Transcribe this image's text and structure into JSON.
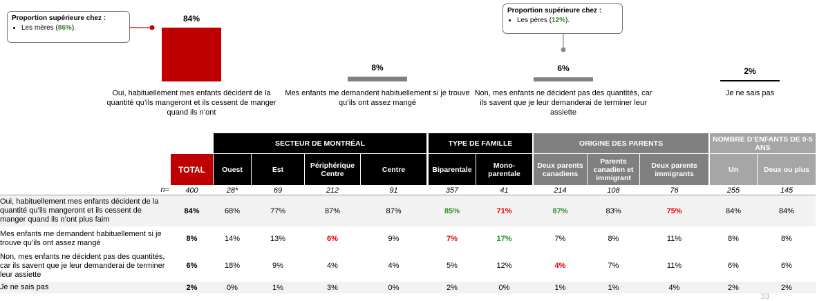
{
  "chart_data": {
    "type": "bar",
    "categories": [
      "Oui, habituellement mes enfants décident de la quantité qu’ils mangeront et ils cessent de manger quand ils n’ont",
      "Mes enfants me demandent habituellement si je trouve qu’ils ont assez mangé",
      "Non, mes enfants ne décident pas des quantités, car ils savent que je leur demanderai de terminer leur assiette",
      "Je ne sais pas"
    ],
    "values": [
      84,
      8,
      6,
      2
    ],
    "value_labels": [
      "84%",
      "8%",
      "6%",
      "2%"
    ],
    "colors": [
      "#c00000",
      "#808080",
      "#808080",
      "#000000"
    ]
  },
  "callouts": [
    {
      "heading": "Proportion supérieure chez :",
      "before": "Les mères (",
      "highlight": "86%",
      "after": ")."
    },
    {
      "heading": "Proportion supérieure chez :",
      "before": "Les pères (",
      "highlight": "12%",
      "after": ")."
    }
  ],
  "table": {
    "groups": [
      "SECTEUR DE MONTRÉAL",
      "TYPE DE FAMILLE",
      "ORIGINE DES PARENTS",
      "NOMBRE D’ENFANTS DE 0-5 ANS"
    ],
    "columns": [
      "TOTAL",
      "Ouest",
      "Est",
      "Périphérique Centre",
      "Centre",
      "Biparentale",
      "Mono-parentale",
      "Deux parents canadiens",
      "Parents canadien et immigrant",
      "Deux parents immigrants",
      "Un",
      "Deux ou plus"
    ],
    "n_label": "n=",
    "n": [
      "400",
      "28*",
      "69",
      "212",
      "91",
      "357",
      "41",
      "214",
      "108",
      "76",
      "255",
      "145"
    ],
    "rows": [
      {
        "label": "Oui, habituellement mes enfants décident de la quantité qu’ils mangeront et ils cessent de manger quand ils n’ont plus faim",
        "cells": [
          "84%",
          "68%",
          "77%",
          "87%",
          "87%",
          "85%",
          "71%",
          "87%",
          "83%",
          "75%",
          "84%",
          "84%"
        ],
        "colors": [
          "#000000",
          "#000000",
          "#000000",
          "#000000",
          "#000000",
          "#2e8b2e",
          "#e60000",
          "#2e8b2e",
          "#000000",
          "#e60000",
          "#000000",
          "#000000"
        ]
      },
      {
        "label": "Mes enfants me demandent habituellement si je trouve qu’ils ont assez mangé",
        "cells": [
          "8%",
          "14%",
          "13%",
          "6%",
          "9%",
          "7%",
          "17%",
          "7%",
          "8%",
          "11%",
          "8%",
          "8%"
        ],
        "colors": [
          "#000000",
          "#000000",
          "#000000",
          "#e60000",
          "#000000",
          "#e60000",
          "#2e8b2e",
          "#000000",
          "#000000",
          "#000000",
          "#000000",
          "#000000"
        ]
      },
      {
        "label": "Non, mes enfants ne décident pas des quantités, car ils savent que je leur demanderai de terminer leur assiette",
        "cells": [
          "6%",
          "18%",
          "9%",
          "4%",
          "4%",
          "5%",
          "12%",
          "4%",
          "7%",
          "11%",
          "6%",
          "6%"
        ],
        "colors": [
          "#000000",
          "#000000",
          "#000000",
          "#000000",
          "#000000",
          "#000000",
          "#000000",
          "#e60000",
          "#000000",
          "#000000",
          "#000000",
          "#000000"
        ]
      },
      {
        "label": "Je ne sais pas",
        "cells": [
          "2%",
          "0%",
          "1%",
          "3%",
          "0%",
          "2%",
          "0%",
          "1%",
          "1%",
          "4%",
          "2%",
          "2%"
        ],
        "colors": [
          "#000000",
          "#000000",
          "#000000",
          "#000000",
          "#000000",
          "#000000",
          "#000000",
          "#000000",
          "#000000",
          "#000000",
          "#000000",
          "#000000"
        ]
      }
    ]
  },
  "page_number": "33"
}
